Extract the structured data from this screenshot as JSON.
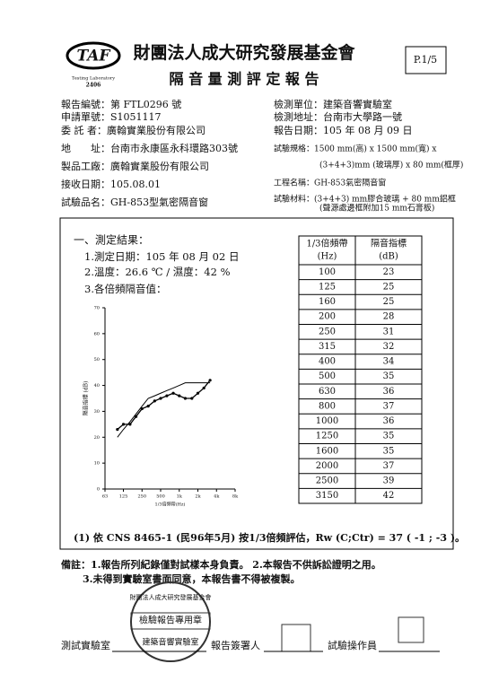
{
  "header": {
    "logo": "TAF",
    "logo_sub": "Testing Laboratory",
    "logo_no": "2406",
    "org": "財團法人成大研究發展基金會",
    "title": "隔 音 量 測 評 定 報 告",
    "page": "P.1/5"
  },
  "info_left": [
    "報告編號：第 FTL0296 號",
    "申請單號：S1051117",
    "委 託 者：廣翰實業股份有限公司",
    "地　　址：台南市永康區永科環路303號",
    "製品工廠：廣翰實業股份有限公司",
    "接收日期：105.08.01",
    "試驗品名：GH-853型氣密隔音窗"
  ],
  "info_right": [
    "檢測單位：建築音響實驗室",
    "檢測地址：台南市大學路一號",
    "報告日期：105 年 08 月 09 日",
    "試驗規格：1500 mm(高) x 1500 mm(寬) x",
    "(3+4+3)mm (玻璃厚) x 80 mm(框厚)",
    "工程名稱：GH-853氣密隔音窗",
    "試驗材料：(3+4+3) mm膠合玻璃 + 80 mm鋁框",
    "(聲源處邊框附加15 mm石膏板)"
  ],
  "results": {
    "heading": "一、測定結果：",
    "lines": [
      "1.測定日期：105 年 08 月 02 日",
      "2.溫度：26.6 ℃ / 濕度：42 %",
      "3.各倍頻隔音值："
    ]
  },
  "chart_data": {
    "type": "line",
    "y_label": "隔音指標 (dB)",
    "x_label": "1/3倍頻帶(Hz)",
    "log_x": true,
    "x": [
      100,
      125,
      160,
      200,
      250,
      315,
      400,
      500,
      630,
      800,
      1000,
      1250,
      1600,
      2000,
      2500,
      3150
    ],
    "series": [
      {
        "color": "#000000",
        "values": [
          23,
          25,
          25,
          28,
          31,
          32,
          34,
          35,
          36,
          37,
          36,
          35,
          35,
          37,
          39,
          42
        ]
      },
      {
        "color": "#000000",
        "values": [
          20,
          23,
          26,
          29,
          32,
          35,
          36,
          37,
          38,
          39,
          40,
          41,
          41,
          41,
          41,
          41
        ]
      }
    ],
    "xlim": [
      63,
      8000
    ],
    "xticks": [
      63,
      125,
      250,
      500,
      {
        "value": 1000,
        "label": "1k"
      },
      {
        "value": 2000,
        "label": "2k"
      },
      {
        "value": 4000,
        "label": "4k"
      },
      {
        "value": 8000,
        "label": "8k"
      }
    ],
    "ylim": [
      0,
      70
    ],
    "yticks": [
      0,
      10,
      20,
      30,
      40,
      50,
      60,
      70
    ]
  },
  "table": {
    "header": [
      [
        "1/3倍頻帶",
        "(Hz)"
      ],
      [
        "隔音指標",
        "(dB)"
      ]
    ]
  },
  "rating": "(1) 依 CNS 8465-1 (民96年5月) 按1/3倍頻評估，Rw (C;Ctr) = 37 ( -1 ; -3 )。",
  "notes": [
    "備註：1.報告所列紀錄僅對試樣本身負責。 2.本報告不供訴訟證明之用。",
    "3.未得到實驗室書面同意，本報告書不得被複製。"
  ],
  "stamp": [
    "財團法人成大研究發展基金會",
    "檢驗報告專用章",
    "建築音響實驗室"
  ],
  "footer": [
    "測試實驗室",
    "報告簽署人",
    "試驗操作員"
  ]
}
